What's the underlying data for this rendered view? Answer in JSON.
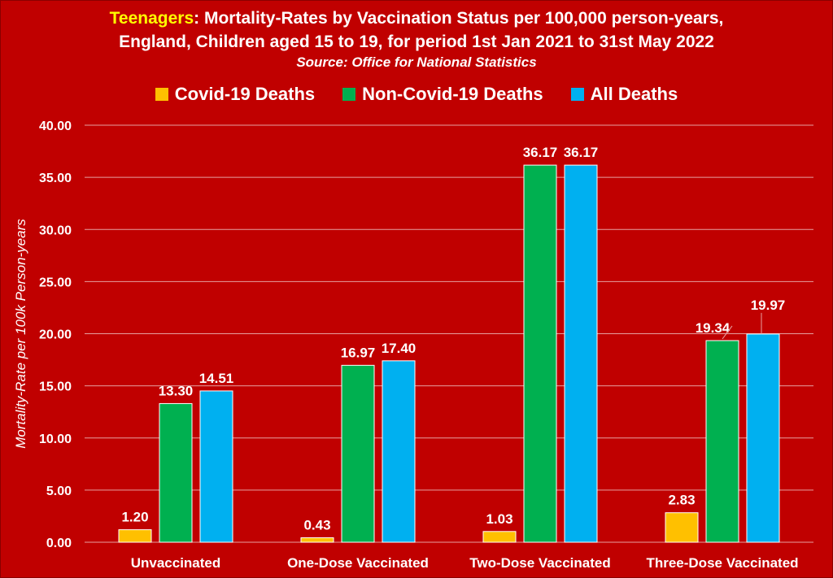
{
  "title": {
    "highlight": "Teenagers",
    "line1_rest": ": Mortality-Rates by Vaccination Status per 100,000 person-years,",
    "line2": "England, Children aged 15 to 19, for period 1st Jan 2021 to 31st May 2022",
    "source": "Source: Office for National Statistics"
  },
  "colors": {
    "background": "#c00000",
    "title_highlight": "#ffff00",
    "covid": "#ffc000",
    "non_covid": "#00b050",
    "all": "#00b0f0"
  },
  "chart_data": {
    "type": "bar",
    "ylabel": "Mortality-Rate per 100k Person-years",
    "xlabel": "",
    "ylim": [
      0,
      40
    ],
    "yticks": [
      "0.00",
      "5.00",
      "10.00",
      "15.00",
      "20.00",
      "25.00",
      "30.00",
      "35.00",
      "40.00"
    ],
    "grid": true,
    "legend_position": "top",
    "categories": [
      "Unvaccinated",
      "One-Dose Vaccinated",
      "Two-Dose Vaccinated",
      "Three-Dose Vaccinated"
    ],
    "series": [
      {
        "name": "Covid-19 Deaths",
        "color": "#ffc000",
        "values": [
          1.2,
          0.43,
          1.03,
          2.83
        ],
        "labels": [
          "1.20",
          "0.43",
          "1.03",
          "2.83"
        ]
      },
      {
        "name": "Non-Covid-19 Deaths",
        "color": "#00b050",
        "values": [
          13.3,
          16.97,
          36.17,
          19.34
        ],
        "labels": [
          "13.30",
          "16.97",
          "36.17",
          "19.34"
        ]
      },
      {
        "name": "All Deaths",
        "color": "#00b0f0",
        "values": [
          14.51,
          17.4,
          36.17,
          19.97
        ],
        "labels": [
          "14.51",
          "17.40",
          "36.17",
          "19.97"
        ]
      }
    ]
  }
}
